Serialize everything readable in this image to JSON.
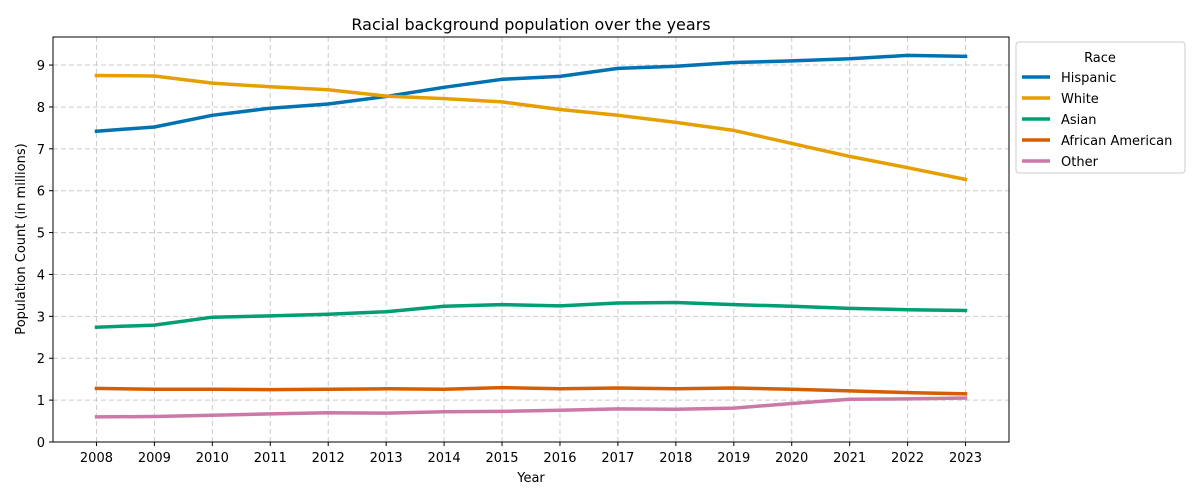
{
  "chart_data": {
    "type": "line",
    "title": "Racial background population over the years",
    "xlabel": "Year",
    "ylabel": "Population Count (in millions)",
    "x": [
      2008,
      2009,
      2010,
      2011,
      2012,
      2013,
      2014,
      2015,
      2016,
      2017,
      2018,
      2019,
      2020,
      2021,
      2022,
      2023
    ],
    "ylim": [
      0,
      9.67
    ],
    "y_ticks": [
      0,
      1,
      2,
      3,
      4,
      5,
      6,
      7,
      8,
      9
    ],
    "grid": true,
    "legend": {
      "title": "Race",
      "placement": "outside-right"
    },
    "series": [
      {
        "name": "Hispanic",
        "color": "#0072B2",
        "values": [
          7.42,
          7.52,
          7.8,
          7.97,
          8.07,
          8.25,
          8.47,
          8.66,
          8.73,
          8.92,
          8.97,
          9.06,
          9.1,
          9.15,
          9.23,
          9.21
        ]
      },
      {
        "name": "White",
        "color": "#E69F00",
        "values": [
          8.75,
          8.74,
          8.57,
          8.48,
          8.41,
          8.26,
          8.2,
          8.12,
          7.94,
          7.8,
          7.63,
          7.44,
          7.13,
          6.82,
          6.55,
          6.27
        ]
      },
      {
        "name": "Asian",
        "color": "#009E73",
        "values": [
          2.74,
          2.79,
          2.98,
          3.01,
          3.05,
          3.11,
          3.24,
          3.28,
          3.25,
          3.32,
          3.33,
          3.28,
          3.24,
          3.19,
          3.16,
          3.14
        ]
      },
      {
        "name": "African American",
        "color": "#D55E00",
        "values": [
          1.28,
          1.26,
          1.26,
          1.25,
          1.26,
          1.27,
          1.26,
          1.3,
          1.27,
          1.29,
          1.27,
          1.29,
          1.26,
          1.22,
          1.18,
          1.15
        ]
      },
      {
        "name": "Other",
        "color": "#CC79A7",
        "values": [
          0.6,
          0.61,
          0.64,
          0.67,
          0.7,
          0.69,
          0.72,
          0.73,
          0.76,
          0.79,
          0.78,
          0.81,
          0.92,
          1.02,
          1.03,
          1.05
        ]
      }
    ]
  }
}
